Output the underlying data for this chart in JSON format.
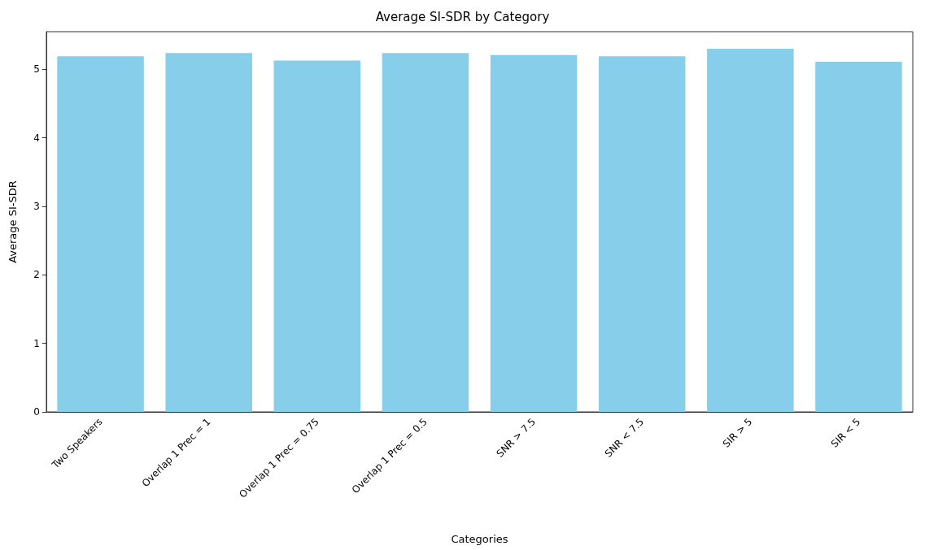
{
  "chart_data": {
    "type": "bar",
    "title": "Average SI-SDR by Category",
    "xlabel": "Categories",
    "ylabel": "Average SI-SDR",
    "categories": [
      "Two Speakers",
      "Overlap 1 Prec = 1",
      "Overlap 1 Prec = 0.75",
      "Overlap 1 Prec = 0.5",
      "SNR > 7.5",
      "SNR < 7.5",
      "SIR > 5",
      "SIR < 5"
    ],
    "values": [
      5.19,
      5.24,
      5.13,
      5.24,
      5.21,
      5.19,
      5.3,
      5.11
    ],
    "color": "#87ceeb",
    "ylim": [
      0,
      5.55
    ],
    "yticks": [
      0,
      1,
      2,
      3,
      4,
      5
    ]
  }
}
